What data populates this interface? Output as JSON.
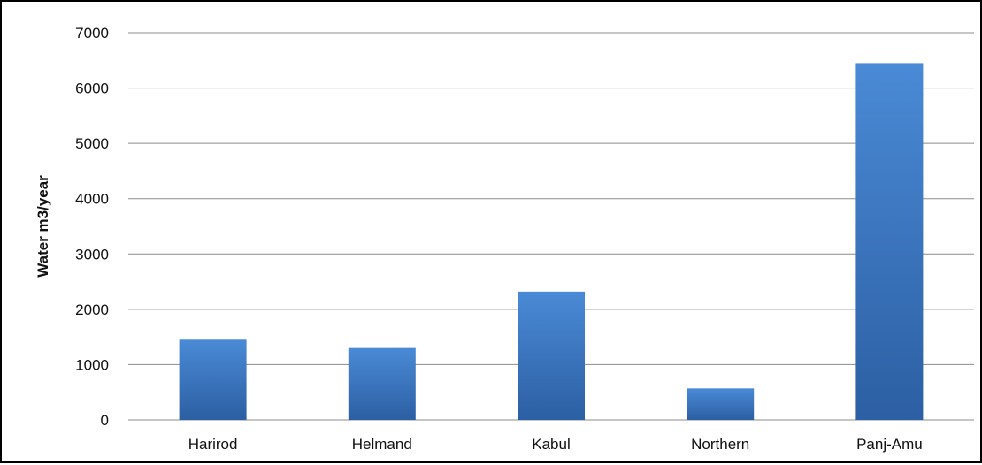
{
  "chart_data": {
    "type": "bar",
    "categories": [
      "Harirod",
      "Helmand",
      "Kabul",
      "Northern",
      "Panj-Amu"
    ],
    "values": [
      1450,
      1300,
      2320,
      570,
      6450
    ],
    "title": "",
    "xlabel": "",
    "ylabel": "Water m3/year",
    "ylim": [
      0,
      7000
    ],
    "yticks": [
      0,
      1000,
      2000,
      3000,
      4000,
      5000,
      6000,
      7000
    ],
    "grid": true,
    "legend": "none",
    "colors": {
      "bar_top": "#4a8ad6",
      "bar_bottom": "#2c5fa3",
      "grid": "#8c8c8c"
    }
  }
}
